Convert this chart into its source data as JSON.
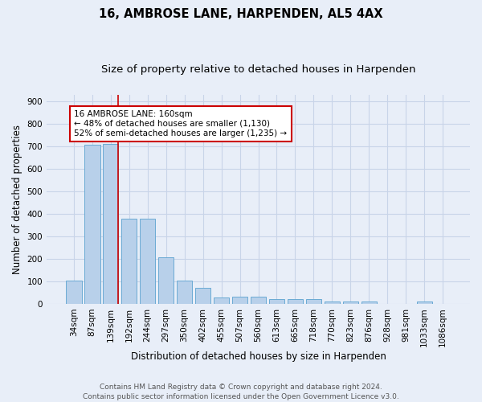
{
  "title1": "16, AMBROSE LANE, HARPENDEN, AL5 4AX",
  "title2": "Size of property relative to detached houses in Harpenden",
  "xlabel": "Distribution of detached houses by size in Harpenden",
  "ylabel": "Number of detached properties",
  "bar_labels": [
    "34sqm",
    "87sqm",
    "139sqm",
    "192sqm",
    "244sqm",
    "297sqm",
    "350sqm",
    "402sqm",
    "455sqm",
    "507sqm",
    "560sqm",
    "613sqm",
    "665sqm",
    "718sqm",
    "770sqm",
    "823sqm",
    "876sqm",
    "928sqm",
    "981sqm",
    "1033sqm",
    "1086sqm"
  ],
  "bar_values": [
    102,
    706,
    712,
    378,
    378,
    206,
    102,
    73,
    30,
    32,
    32,
    20,
    20,
    20,
    10,
    10,
    10,
    0,
    0,
    10,
    0
  ],
  "bar_color": "#b8d0ea",
  "bar_edge_color": "#6aaad4",
  "grid_color": "#c8d4e8",
  "bg_color": "#e8eef8",
  "vline_color": "#cc0000",
  "vline_xindex": 2,
  "annotation_text": "16 AMBROSE LANE: 160sqm\n← 48% of detached houses are smaller (1,130)\n52% of semi-detached houses are larger (1,235) →",
  "annotation_box_facecolor": "#ffffff",
  "annotation_box_edge": "#cc0000",
  "ylim": [
    0,
    930
  ],
  "yticks": [
    0,
    100,
    200,
    300,
    400,
    500,
    600,
    700,
    800,
    900
  ],
  "footnote": "Contains HM Land Registry data © Crown copyright and database right 2024.\nContains public sector information licensed under the Open Government Licence v3.0.",
  "title_fontsize": 10.5,
  "subtitle_fontsize": 9.5,
  "axis_label_fontsize": 8.5,
  "tick_fontsize": 7.5,
  "annotation_fontsize": 7.5,
  "footnote_fontsize": 6.5
}
